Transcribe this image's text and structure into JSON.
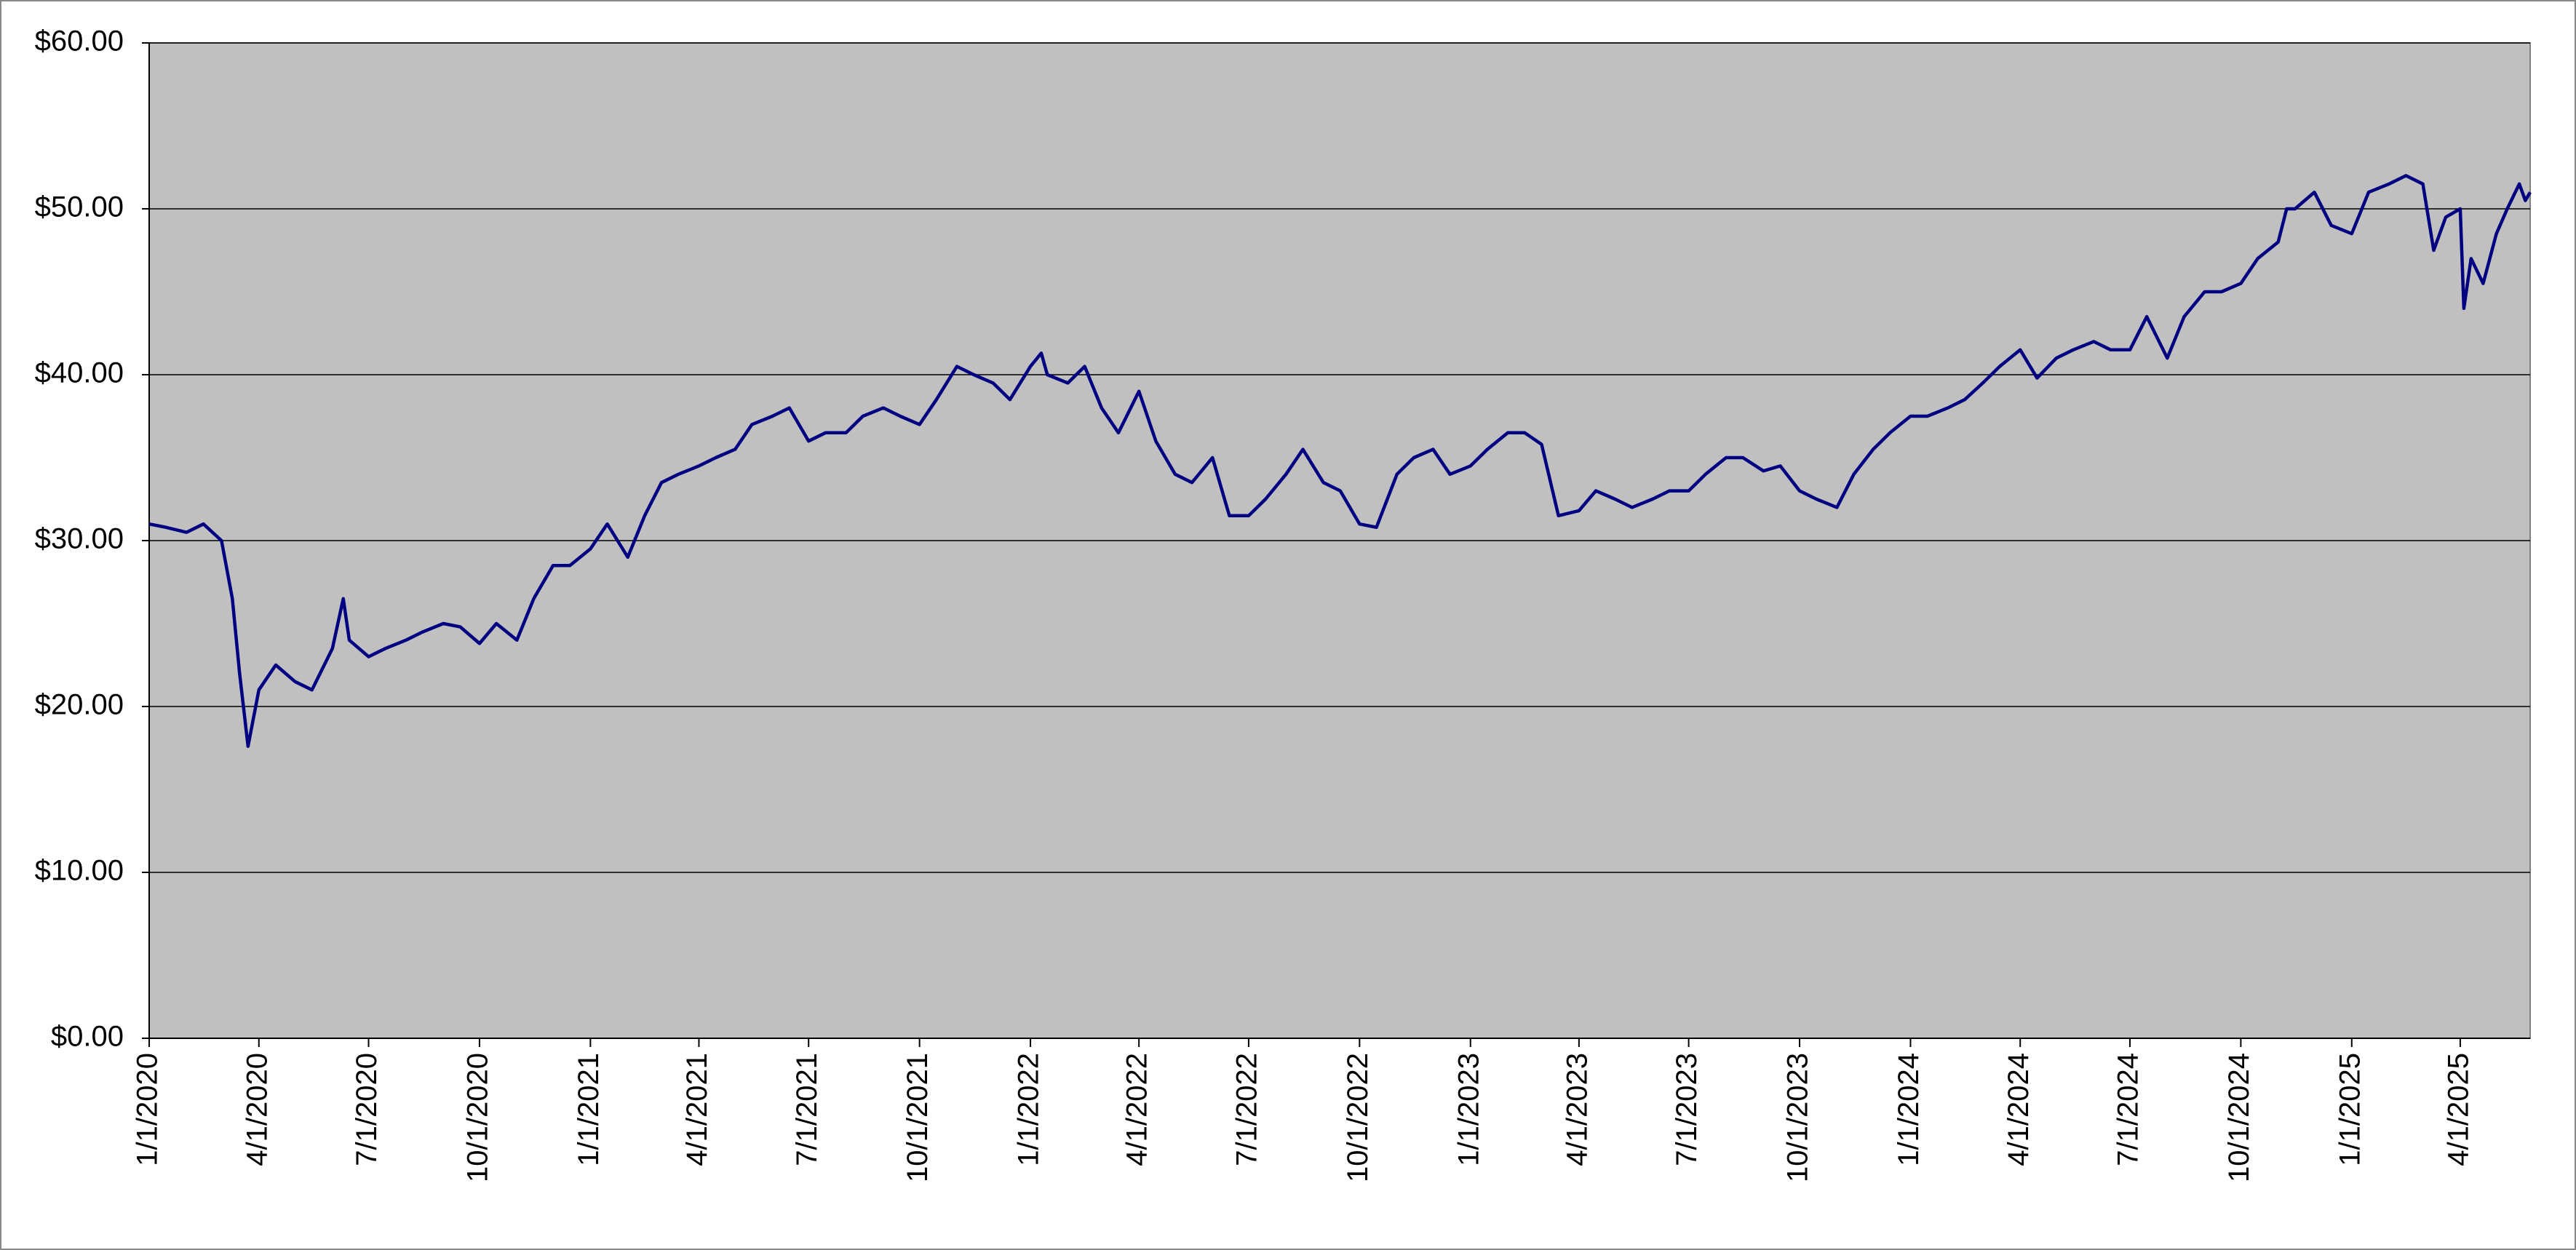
{
  "chart_data": {
    "type": "line",
    "color": "#000080",
    "plot_background": "#c0c0c0",
    "grid": true,
    "x": [
      "2020-01-01",
      "2020-01-15",
      "2020-02-01",
      "2020-02-15",
      "2020-03-01",
      "2020-03-10",
      "2020-03-16",
      "2020-03-23",
      "2020-04-01",
      "2020-04-15",
      "2020-05-01",
      "2020-05-15",
      "2020-06-01",
      "2020-06-10",
      "2020-06-15",
      "2020-07-01",
      "2020-07-15",
      "2020-08-01",
      "2020-08-15",
      "2020-09-01",
      "2020-09-15",
      "2020-10-01",
      "2020-10-15",
      "2020-11-01",
      "2020-11-15",
      "2020-12-01",
      "2020-12-15",
      "2021-01-01",
      "2021-01-15",
      "2021-02-01",
      "2021-02-15",
      "2021-03-01",
      "2021-03-15",
      "2021-04-01",
      "2021-04-15",
      "2021-05-01",
      "2021-05-15",
      "2021-06-01",
      "2021-06-15",
      "2021-07-01",
      "2021-07-15",
      "2021-08-01",
      "2021-08-15",
      "2021-09-01",
      "2021-09-15",
      "2021-10-01",
      "2021-10-15",
      "2021-11-01",
      "2021-11-15",
      "2021-12-01",
      "2021-12-15",
      "2022-01-01",
      "2022-01-10",
      "2022-01-15",
      "2022-02-01",
      "2022-02-15",
      "2022-03-01",
      "2022-03-15",
      "2022-04-01",
      "2022-04-15",
      "2022-05-01",
      "2022-05-15",
      "2022-06-01",
      "2022-06-15",
      "2022-07-01",
      "2022-07-15",
      "2022-08-01",
      "2022-08-15",
      "2022-09-01",
      "2022-09-15",
      "2022-10-01",
      "2022-10-15",
      "2022-11-01",
      "2022-11-15",
      "2022-12-01",
      "2022-12-15",
      "2023-01-01",
      "2023-01-15",
      "2023-02-01",
      "2023-02-15",
      "2023-03-01",
      "2023-03-15",
      "2023-04-01",
      "2023-04-15",
      "2023-05-01",
      "2023-05-15",
      "2023-06-01",
      "2023-06-15",
      "2023-07-01",
      "2023-07-15",
      "2023-08-01",
      "2023-08-15",
      "2023-09-01",
      "2023-09-15",
      "2023-10-01",
      "2023-10-15",
      "2023-11-01",
      "2023-11-15",
      "2023-12-01",
      "2023-12-15",
      "2024-01-01",
      "2024-01-15",
      "2024-02-01",
      "2024-02-15",
      "2024-03-01",
      "2024-03-15",
      "2024-04-01",
      "2024-04-15",
      "2024-05-01",
      "2024-05-15",
      "2024-06-01",
      "2024-06-15",
      "2024-07-01",
      "2024-07-15",
      "2024-08-01",
      "2024-08-15",
      "2024-09-01",
      "2024-09-15",
      "2024-10-01",
      "2024-10-15",
      "2024-11-01",
      "2024-11-08",
      "2024-11-15",
      "2024-12-01",
      "2024-12-15",
      "2025-01-01",
      "2025-01-15",
      "2025-02-01",
      "2025-02-15",
      "2025-03-01",
      "2025-03-10",
      "2025-03-20",
      "2025-04-01",
      "2025-04-04",
      "2025-04-10",
      "2025-04-20",
      "2025-05-01",
      "2025-05-10",
      "2025-05-20",
      "2025-05-25",
      "2025-05-29"
    ],
    "values": [
      31,
      30.8,
      30.5,
      31,
      30,
      26.5,
      22,
      17.6,
      21,
      22.5,
      21.5,
      21,
      23.5,
      26.5,
      24,
      23,
      23.5,
      24,
      24.5,
      25,
      24.8,
      23.8,
      25,
      24,
      26.5,
      28.5,
      28.5,
      29.5,
      31,
      29,
      31.5,
      33.5,
      34,
      34.5,
      35,
      35.5,
      37,
      37.5,
      38,
      36,
      36.5,
      36.5,
      37.5,
      38,
      37.5,
      37,
      38.5,
      40.5,
      40,
      39.5,
      38.5,
      40.5,
      41.3,
      40,
      39.5,
      40.5,
      38,
      36.5,
      39,
      36,
      34,
      33.5,
      35,
      31.5,
      31.5,
      32.5,
      34,
      35.5,
      33.5,
      33,
      31,
      30.8,
      34,
      35,
      35.5,
      34,
      34.5,
      35.5,
      36.5,
      36.5,
      35.8,
      31.5,
      31.8,
      33,
      32.5,
      32,
      32.5,
      33,
      33,
      34,
      35,
      35,
      34.2,
      34.5,
      33,
      32.5,
      32,
      34,
      35.5,
      36.5,
      37.5,
      37.5,
      38,
      38.5,
      39.5,
      40.5,
      41.5,
      39.8,
      41,
      41.5,
      42,
      41.5,
      41.5,
      43.5,
      41,
      43.5,
      45,
      45,
      45.5,
      47,
      48,
      50,
      50,
      51,
      49,
      48.5,
      51,
      51.5,
      52,
      51.5,
      47.5,
      49.5,
      50,
      44,
      47,
      45.5,
      48.5,
      50,
      51.5,
      50.5,
      51
    ],
    "xlim": [
      "2020-01-01",
      "2025-05-29"
    ],
    "xticks": [
      {
        "value": "2020-01-01",
        "label": "1/1/2020"
      },
      {
        "value": "2020-04-01",
        "label": "4/1/2020"
      },
      {
        "value": "2020-07-01",
        "label": "7/1/2020"
      },
      {
        "value": "2020-10-01",
        "label": "10/1/2020"
      },
      {
        "value": "2021-01-01",
        "label": "1/1/2021"
      },
      {
        "value": "2021-04-01",
        "label": "4/1/2021"
      },
      {
        "value": "2021-07-01",
        "label": "7/1/2021"
      },
      {
        "value": "2021-10-01",
        "label": "10/1/2021"
      },
      {
        "value": "2022-01-01",
        "label": "1/1/2022"
      },
      {
        "value": "2022-04-01",
        "label": "4/1/2022"
      },
      {
        "value": "2022-07-01",
        "label": "7/1/2022"
      },
      {
        "value": "2022-10-01",
        "label": "10/1/2022"
      },
      {
        "value": "2023-01-01",
        "label": "1/1/2023"
      },
      {
        "value": "2023-04-01",
        "label": "4/1/2023"
      },
      {
        "value": "2023-07-01",
        "label": "7/1/2023"
      },
      {
        "value": "2023-10-01",
        "label": "10/1/2023"
      },
      {
        "value": "2024-01-01",
        "label": "1/1/2024"
      },
      {
        "value": "2024-04-01",
        "label": "4/1/2024"
      },
      {
        "value": "2024-07-01",
        "label": "7/1/2024"
      },
      {
        "value": "2024-10-01",
        "label": "10/1/2024"
      },
      {
        "value": "2025-01-01",
        "label": "1/1/2025"
      },
      {
        "value": "2025-04-01",
        "label": "4/1/2025"
      }
    ],
    "ylim": [
      0,
      60
    ],
    "yticks": [
      {
        "value": 0,
        "label": "$0.00"
      },
      {
        "value": 10,
        "label": "$10.00"
      },
      {
        "value": 20,
        "label": "$20.00"
      },
      {
        "value": 30,
        "label": "$30.00"
      },
      {
        "value": 40,
        "label": "$40.00"
      },
      {
        "value": 50,
        "label": "$50.00"
      },
      {
        "value": 60,
        "label": "$60.00"
      }
    ]
  }
}
